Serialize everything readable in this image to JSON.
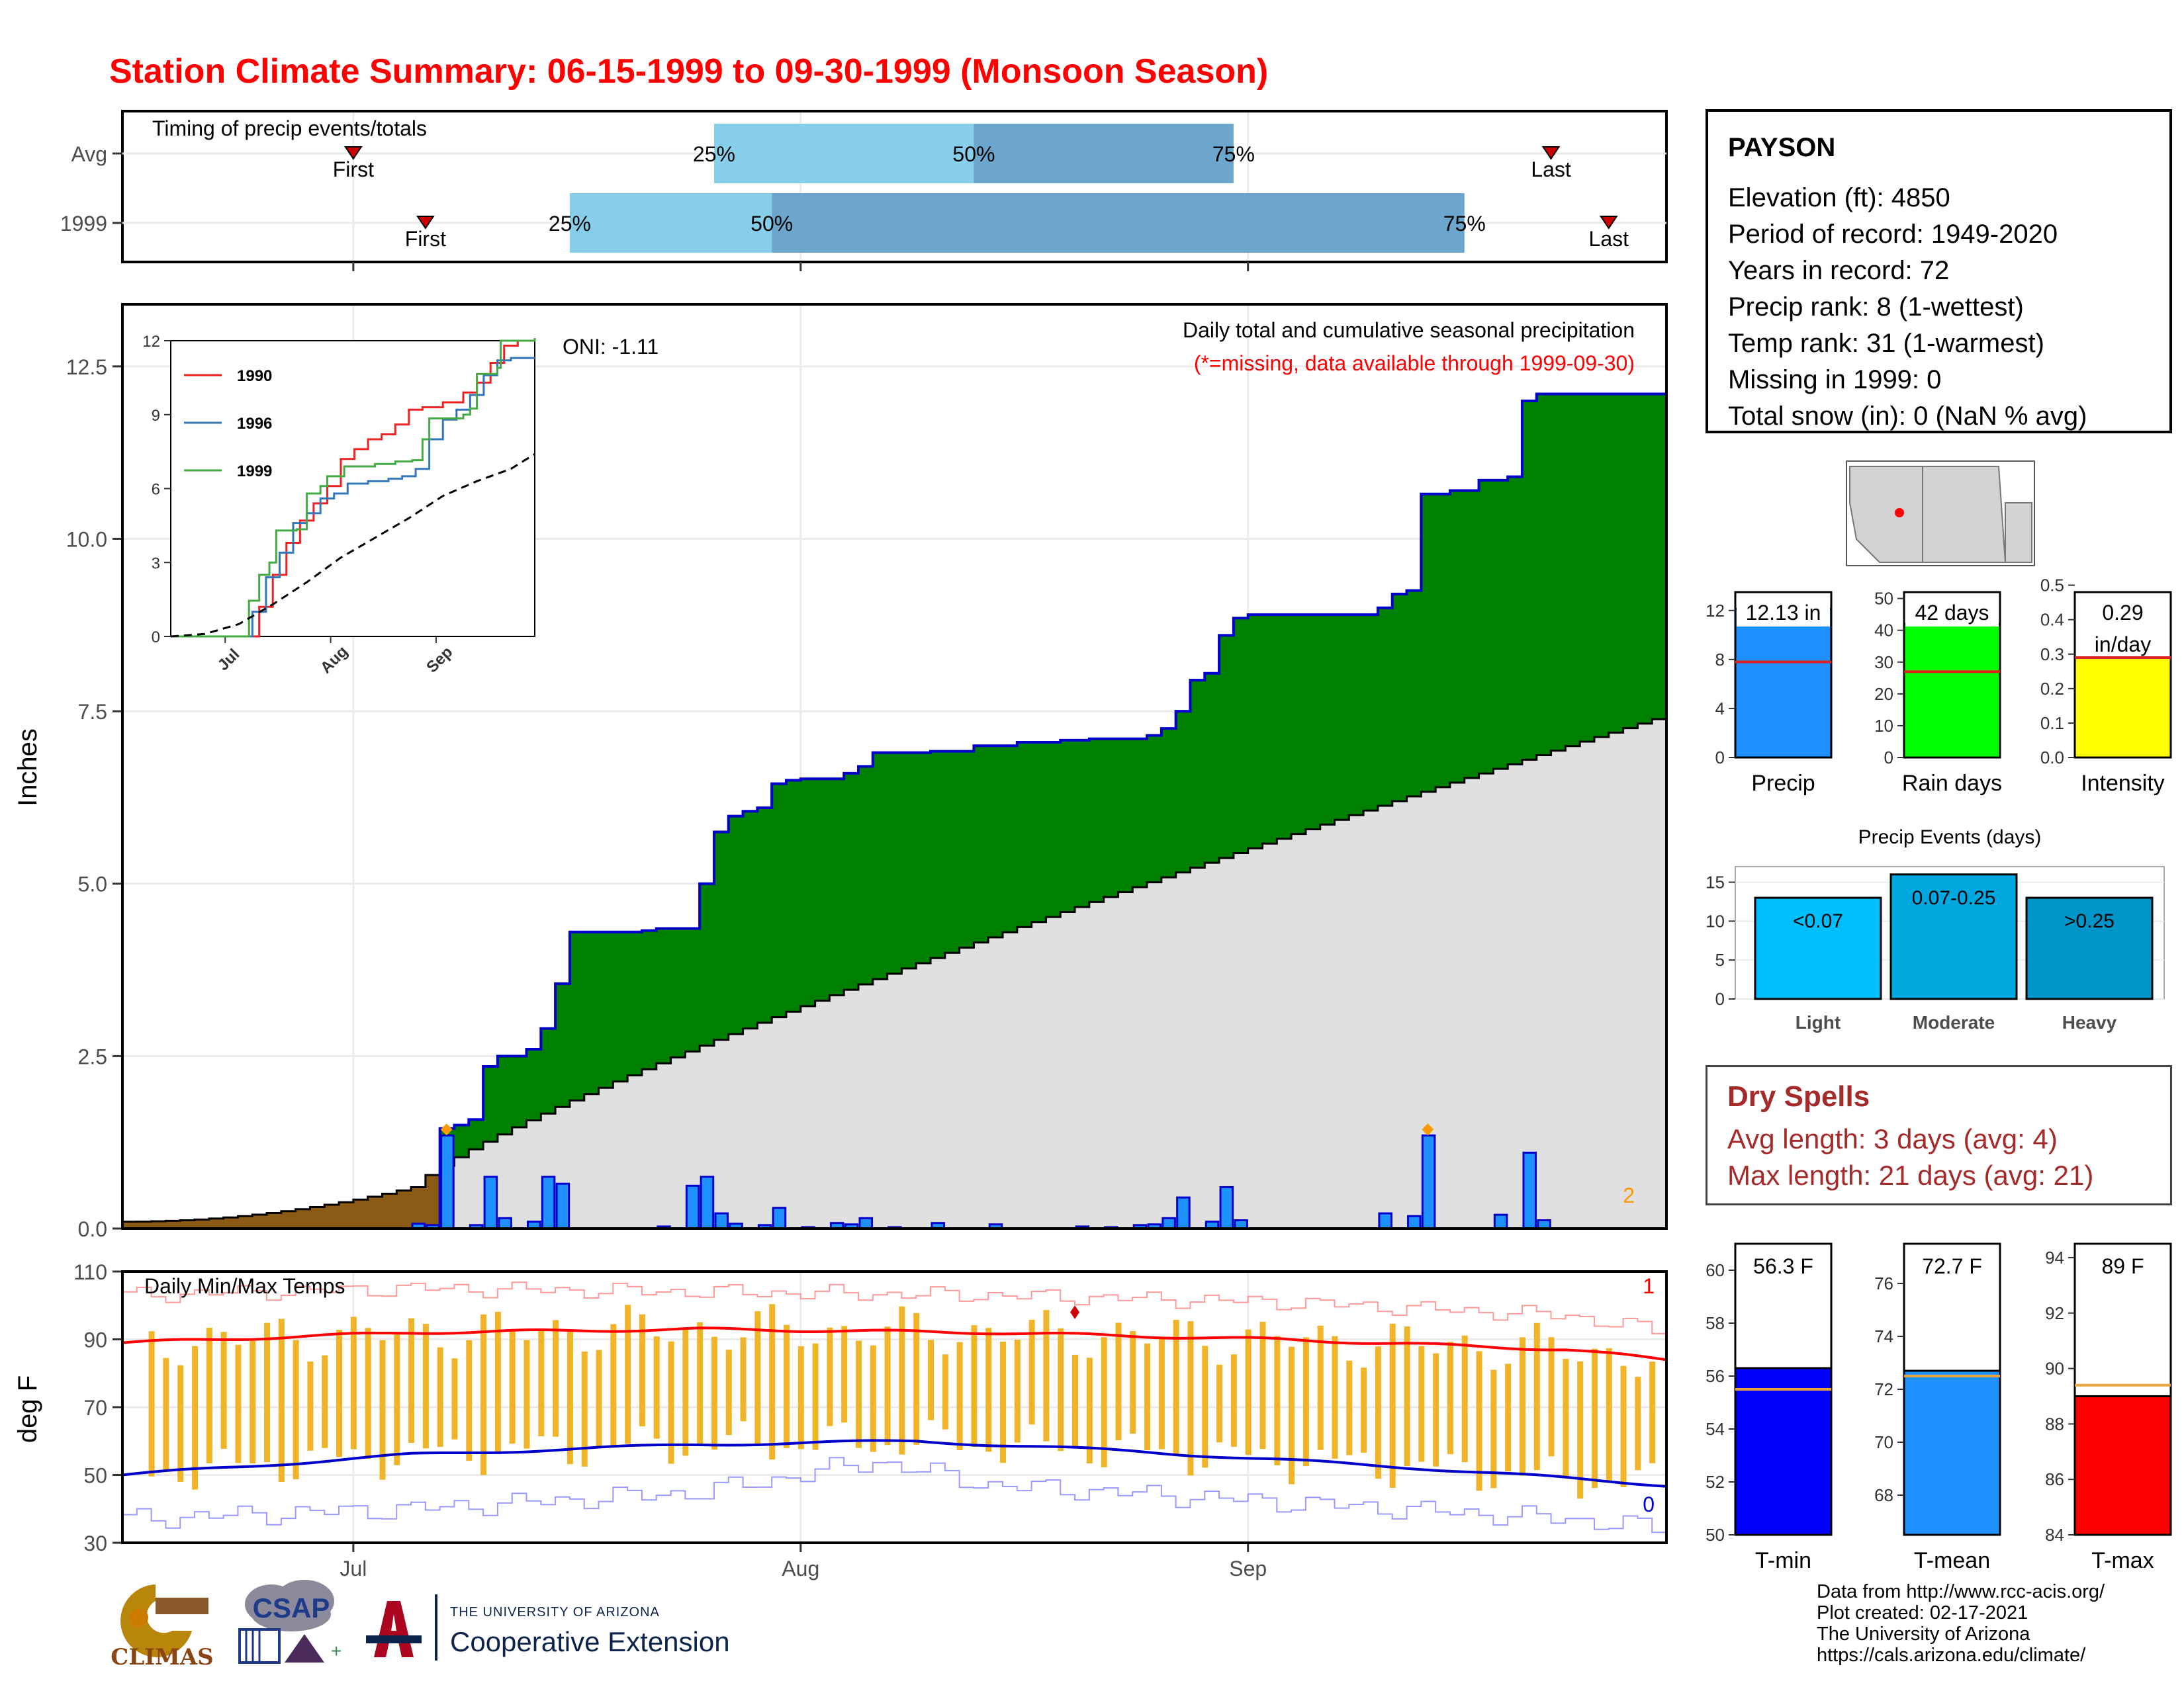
{
  "title": "Station Climate Summary: 06-15-1999 to 09-30-1999 (Monsoon Season)",
  "station": {
    "name": "PAYSON",
    "lines": [
      "Elevation (ft): 4850",
      "Period of record: 1949-2020",
      "Years in record: 72",
      "Precip rank: 8 (1-wettest)",
      "Temp rank: 31 (1-warmest)",
      "Missing in 1999: 0",
      "Total snow (in): 0 (NaN % avg)"
    ]
  },
  "dry_spells": {
    "title": "Dry Spells",
    "avg": "Avg length: 3 days (avg: 4)",
    "max": "Max length: 21 days (avg: 21)"
  },
  "credits": [
    "Data from http://www.rcc-acis.org/",
    "Plot created: 02-17-2021",
    "The University of Arizona",
    "https://cals.arizona.edu/climate/"
  ],
  "logos": {
    "climas": "CLIMAS",
    "csap": "CSAP",
    "ua_small": "THE UNIVERSITY OF ARIZONA",
    "ua_big": "Cooperative Extension"
  },
  "chart_data": [
    {
      "id": "timing",
      "type": "bar",
      "label": "Timing of precip events/totals",
      "rows": [
        {
          "name": "Avg",
          "first": "2020-07-01",
          "p25": "2020-07-26",
          "p50": "2020-08-13",
          "p75": "2020-08-31",
          "last": "2020-09-22"
        },
        {
          "name": "1999",
          "first": "2020-07-06",
          "p25": "2020-07-16",
          "p50": "2020-07-30",
          "p75": "2020-09-16",
          "last": "2020-09-26"
        }
      ],
      "labels": {
        "first": "First",
        "last": "Last",
        "p25": "25%",
        "p50": "50%",
        "p75": "75%"
      }
    },
    {
      "id": "precip",
      "type": "area",
      "ylabel": "Inches",
      "oni": "ONI: -1.11",
      "note_title": "Daily total and cumulative seasonal precipitation",
      "note_missing": "(*=missing, data available through 1999-09-30)",
      "missing_count": "2",
      "ylim": [
        0,
        13.4
      ],
      "yticks": [
        "0.0",
        "2.5",
        "5.0",
        "7.5",
        "10.0",
        "12.5"
      ],
      "xticks": [
        "Jul",
        "Aug",
        "Sep"
      ],
      "cumulative_1999": [
        [
          "1999-06-15",
          0.0
        ],
        [
          "1999-07-05",
          0.0
        ],
        [
          "1999-07-07",
          1.45
        ],
        [
          "1999-07-08",
          1.5
        ],
        [
          "1999-07-09",
          1.58
        ],
        [
          "1999-07-10",
          2.35
        ],
        [
          "1999-07-11",
          2.5
        ],
        [
          "1999-07-13",
          2.6
        ],
        [
          "1999-07-14",
          2.9
        ],
        [
          "1999-07-15",
          3.55
        ],
        [
          "1999-07-16",
          4.3
        ],
        [
          "1999-07-21",
          4.32
        ],
        [
          "1999-07-22",
          4.35
        ],
        [
          "1999-07-25",
          5.0
        ],
        [
          "1999-07-26",
          5.75
        ],
        [
          "1999-07-27",
          5.98
        ],
        [
          "1999-07-28",
          6.05
        ],
        [
          "1999-07-29",
          6.1
        ],
        [
          "1999-07-30",
          6.45
        ],
        [
          "1999-07-31",
          6.5
        ],
        [
          "1999-08-01",
          6.52
        ],
        [
          "1999-08-04",
          6.6
        ],
        [
          "1999-08-05",
          6.7
        ],
        [
          "1999-08-06",
          6.9
        ],
        [
          "1999-08-10",
          6.92
        ],
        [
          "1999-08-13",
          7.0
        ],
        [
          "1999-08-16",
          7.05
        ],
        [
          "1999-08-19",
          7.08
        ],
        [
          "1999-08-21",
          7.1
        ],
        [
          "1999-08-25",
          7.15
        ],
        [
          "1999-08-26",
          7.25
        ],
        [
          "1999-08-27",
          7.5
        ],
        [
          "1999-08-28",
          7.95
        ],
        [
          "1999-08-29",
          8.05
        ],
        [
          "1999-08-30",
          8.6
        ],
        [
          "1999-08-31",
          8.85
        ],
        [
          "1999-09-01",
          8.9
        ],
        [
          "1999-09-10",
          9.0
        ],
        [
          "1999-09-11",
          9.2
        ],
        [
          "1999-09-12",
          9.25
        ],
        [
          "1999-09-13",
          10.65
        ],
        [
          "1999-09-15",
          10.7
        ],
        [
          "1999-09-17",
          10.85
        ],
        [
          "1999-09-19",
          10.9
        ],
        [
          "1999-09-20",
          12.0
        ],
        [
          "1999-09-21",
          12.1
        ],
        [
          "1999-09-30",
          12.1
        ]
      ],
      "cumulative_avg_end": 7.45,
      "daily_1999": [
        [
          "1999-07-05",
          0.07
        ],
        [
          "1999-07-06",
          0.05
        ],
        [
          "1999-07-07",
          1.35
        ],
        [
          "1999-07-09",
          0.05
        ],
        [
          "1999-07-10",
          0.75
        ],
        [
          "1999-07-11",
          0.15
        ],
        [
          "1999-07-13",
          0.1
        ],
        [
          "1999-07-14",
          0.75
        ],
        [
          "1999-07-15",
          0.65
        ],
        [
          "1999-07-22",
          0.03
        ],
        [
          "1999-07-24",
          0.62
        ],
        [
          "1999-07-25",
          0.75
        ],
        [
          "1999-07-26",
          0.22
        ],
        [
          "1999-07-27",
          0.07
        ],
        [
          "1999-07-29",
          0.05
        ],
        [
          "1999-07-30",
          0.3
        ],
        [
          "1999-08-01",
          0.02
        ],
        [
          "1999-08-03",
          0.08
        ],
        [
          "1999-08-04",
          0.06
        ],
        [
          "1999-08-05",
          0.15
        ],
        [
          "1999-08-07",
          0.02
        ],
        [
          "1999-08-10",
          0.08
        ],
        [
          "1999-08-14",
          0.06
        ],
        [
          "1999-08-20",
          0.03
        ],
        [
          "1999-08-22",
          0.02
        ],
        [
          "1999-08-24",
          0.05
        ],
        [
          "1999-08-25",
          0.06
        ],
        [
          "1999-08-26",
          0.15
        ],
        [
          "1999-08-27",
          0.45
        ],
        [
          "1999-08-29",
          0.1
        ],
        [
          "1999-08-30",
          0.6
        ],
        [
          "1999-08-31",
          0.12
        ],
        [
          "1999-09-10",
          0.22
        ],
        [
          "1999-09-12",
          0.18
        ],
        [
          "1999-09-13",
          1.35
        ],
        [
          "1999-09-18",
          0.2
        ],
        [
          "1999-09-20",
          1.1
        ],
        [
          "1999-09-21",
          0.12
        ]
      ],
      "record_marks": [
        "1999-07-07",
        "1999-09-13"
      ]
    },
    {
      "id": "inset",
      "type": "line",
      "ylim": [
        0,
        12
      ],
      "yticks": [
        "0",
        "3",
        "6",
        "9",
        "12"
      ],
      "xticks": [
        "Jul",
        "Aug",
        "Sep"
      ],
      "series": [
        {
          "name": "1990",
          "color": "#ee2222",
          "points": [
            [
              0,
              0
            ],
            [
              22,
              0
            ],
            [
              26,
              1.2
            ],
            [
              30,
              2.5
            ],
            [
              34,
              3.8
            ],
            [
              38,
              4.7
            ],
            [
              42,
              5.4
            ],
            [
              46,
              6.1
            ],
            [
              50,
              7.2
            ],
            [
              54,
              7.6
            ],
            [
              58,
              8.0
            ],
            [
              62,
              8.2
            ],
            [
              66,
              8.6
            ],
            [
              70,
              9.2
            ],
            [
              74,
              9.3
            ],
            [
              80,
              9.5
            ],
            [
              86,
              9.9
            ],
            [
              90,
              10.3
            ],
            [
              94,
              11.1
            ],
            [
              98,
              11.8
            ],
            [
              102,
              12.0
            ],
            [
              107,
              12.1
            ]
          ]
        },
        {
          "name": "1996",
          "color": "#3377bb",
          "points": [
            [
              0,
              0
            ],
            [
              20,
              0
            ],
            [
              24,
              1.0
            ],
            [
              28,
              2.4
            ],
            [
              32,
              3.4
            ],
            [
              36,
              4.6
            ],
            [
              40,
              5.0
            ],
            [
              44,
              5.6
            ],
            [
              48,
              5.8
            ],
            [
              52,
              6.2
            ],
            [
              58,
              6.3
            ],
            [
              64,
              6.4
            ],
            [
              68,
              6.5
            ],
            [
              72,
              6.8
            ],
            [
              76,
              8.0
            ],
            [
              80,
              8.8
            ],
            [
              84,
              9.2
            ],
            [
              88,
              9.8
            ],
            [
              92,
              10.6
            ],
            [
              96,
              11.2
            ],
            [
              100,
              11.3
            ],
            [
              107,
              11.3
            ]
          ]
        },
        {
          "name": "1999",
          "color": "#44aa44",
          "points": [
            [
              0,
              0
            ],
            [
              22,
              0
            ],
            [
              23,
              1.45
            ],
            [
              26,
              2.5
            ],
            [
              29,
              3.0
            ],
            [
              31,
              4.3
            ],
            [
              37,
              4.35
            ],
            [
              40,
              5.8
            ],
            [
              44,
              6.1
            ],
            [
              46,
              6.5
            ],
            [
              51,
              6.9
            ],
            [
              60,
              7.0
            ],
            [
              66,
              7.1
            ],
            [
              71,
              7.15
            ],
            [
              74,
              8.0
            ],
            [
              76,
              8.85
            ],
            [
              86,
              9.0
            ],
            [
              88,
              9.25
            ],
            [
              90,
              10.65
            ],
            [
              96,
              10.9
            ],
            [
              97,
              12.0
            ],
            [
              107,
              12.1
            ]
          ]
        }
      ],
      "average_points": [
        [
          0,
          0
        ],
        [
          10,
          0.1
        ],
        [
          20,
          0.5
        ],
        [
          30,
          1.3
        ],
        [
          40,
          2.2
        ],
        [
          50,
          3.2
        ],
        [
          60,
          4.0
        ],
        [
          70,
          4.8
        ],
        [
          80,
          5.7
        ],
        [
          90,
          6.3
        ],
        [
          100,
          6.8
        ],
        [
          107,
          7.4
        ]
      ]
    },
    {
      "id": "temps",
      "type": "line",
      "label": "Daily Min/Max Temps",
      "ylabel": "deg F",
      "ylim": [
        30,
        110
      ],
      "yticks": [
        "30",
        "50",
        "70",
        "90",
        "110"
      ],
      "xticks": [
        "Jul",
        "Aug",
        "Sep"
      ],
      "record_high_count": "1",
      "record_low_count": "0",
      "avg_max": [
        [
          0,
          89
        ],
        [
          20,
          92
        ],
        [
          40,
          93
        ],
        [
          60,
          92
        ],
        [
          80,
          90
        ],
        [
          100,
          87
        ],
        [
          107,
          84
        ]
      ],
      "avg_min": [
        [
          0,
          50
        ],
        [
          20,
          56
        ],
        [
          40,
          59
        ],
        [
          55,
          60
        ],
        [
          70,
          57
        ],
        [
          90,
          52
        ],
        [
          107,
          47
        ]
      ],
      "rec_max": [
        [
          0,
          103
        ],
        [
          20,
          105
        ],
        [
          40,
          104
        ],
        [
          60,
          103
        ],
        [
          80,
          101
        ],
        [
          100,
          97
        ],
        [
          107,
          92
        ]
      ],
      "rec_min": [
        [
          0,
          37
        ],
        [
          20,
          40
        ],
        [
          40,
          45
        ],
        [
          52,
          54
        ],
        [
          60,
          47
        ],
        [
          80,
          42
        ],
        [
          100,
          37
        ],
        [
          107,
          34
        ]
      ]
    },
    {
      "id": "summary_precip",
      "type": "bar",
      "panels": [
        {
          "name": "Precip",
          "value": 12.13,
          "avg": 7.8,
          "label": "12.13 in",
          "ymax": 13.5,
          "ticks": [
            "0",
            "4",
            "8",
            "12"
          ],
          "color": "#1e90ff"
        },
        {
          "name": "Rain days",
          "value": 42,
          "avg": 27,
          "label": "42 days",
          "ymax": 52,
          "ticks": [
            "0",
            "10",
            "20",
            "30",
            "40",
            "50"
          ],
          "color": "#00ff00"
        },
        {
          "name": "Intensity",
          "value": 0.29,
          "avg": 0.29,
          "label": "0.29 in/day",
          "ymax": 0.48,
          "ticks": [
            "0.0",
            "0.1",
            "0.2",
            "0.3",
            "0.4",
            "0.5"
          ],
          "color": "#ffff00"
        }
      ]
    },
    {
      "id": "events",
      "type": "bar",
      "title": "Precip Events (days)",
      "categories": [
        "Light",
        "Moderate",
        "Heavy"
      ],
      "values": [
        13,
        16,
        13
      ],
      "bar_labels": [
        "<0.07",
        "0.07-0.25",
        ">0.25"
      ],
      "ylim": [
        0,
        17
      ],
      "yticks": [
        "0",
        "5",
        "10",
        "15"
      ]
    },
    {
      "id": "summary_temp",
      "type": "bar",
      "panels": [
        {
          "name": "T-min",
          "value": 56.3,
          "avg": 55.5,
          "label": "56.3 F",
          "ylim": [
            50,
            61
          ],
          "ticks": [
            "50",
            "52",
            "54",
            "56",
            "58",
            "60"
          ],
          "color": "#0000ff"
        },
        {
          "name": "T-mean",
          "value": 72.7,
          "avg": 72.5,
          "label": "72.7 F",
          "ylim": [
            66.5,
            77.5
          ],
          "ticks": [
            "68",
            "70",
            "72",
            "74",
            "76"
          ],
          "color": "#1e90ff"
        },
        {
          "name": "T-max",
          "value": 89,
          "avg": 89.4,
          "label": "89 F",
          "ylim": [
            84,
            94.5
          ],
          "ticks": [
            "84",
            "86",
            "88",
            "90",
            "92",
            "94"
          ],
          "color": "#ff0000"
        }
      ]
    }
  ]
}
